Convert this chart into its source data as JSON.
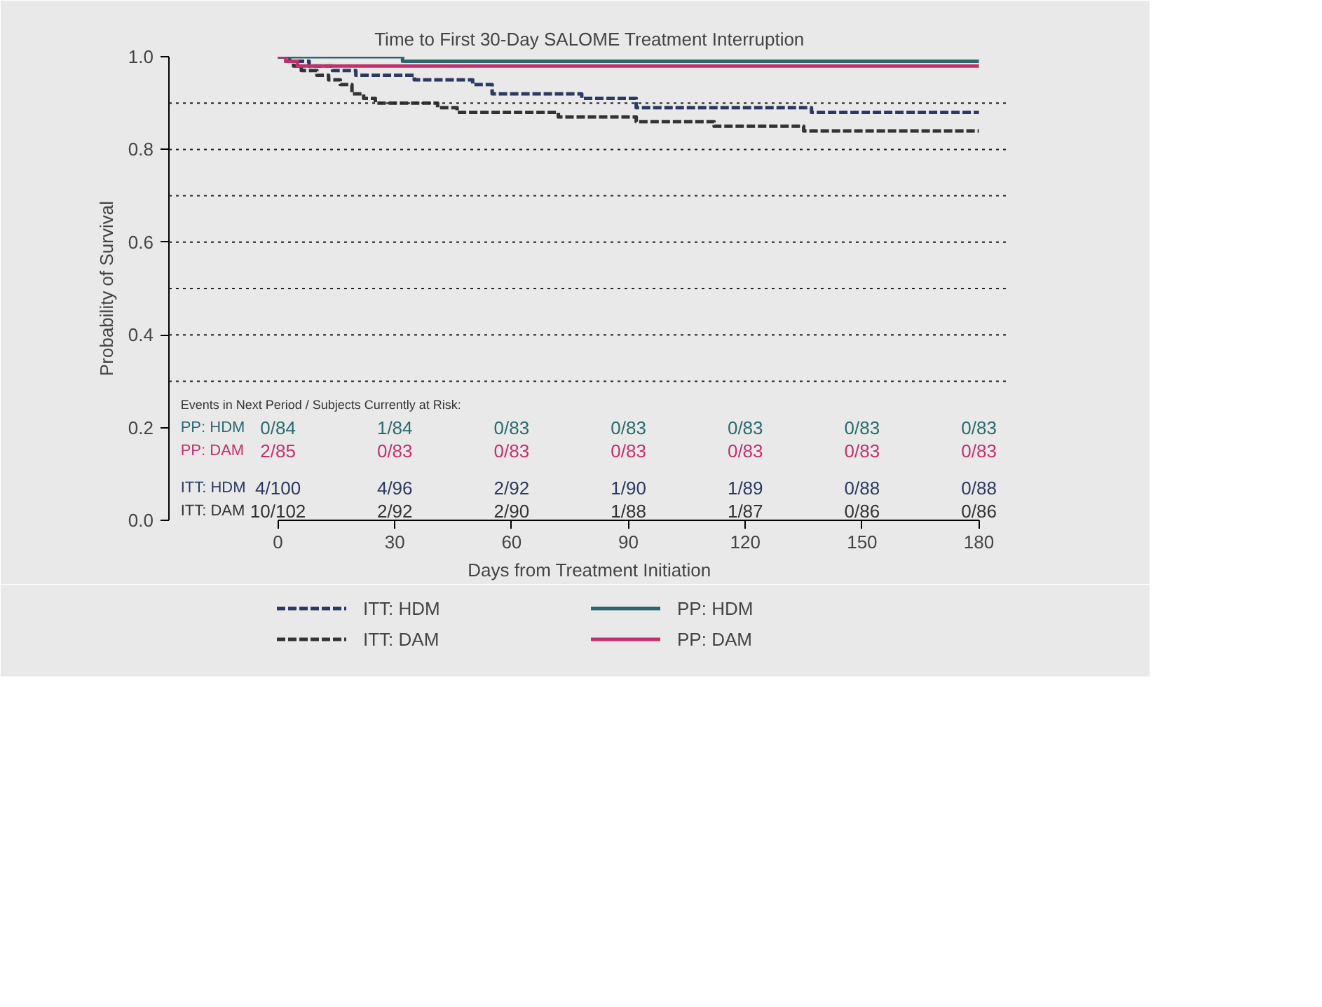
{
  "chart_data": {
    "type": "step",
    "title": "Time to First 30-Day SALOME Treatment Interruption",
    "xlabel": "Days from Treatment Initiation",
    "ylabel": "Probability of Survival",
    "xlim": [
      -28,
      188
    ],
    "xticks": [
      0,
      30,
      60,
      90,
      120,
      150,
      180
    ],
    "ylim": [
      0,
      1.0
    ],
    "yticks": [
      {
        "value": 0,
        "label": "0.0"
      },
      0.2,
      0.4,
      0.6,
      0.8,
      {
        "value": 1.0,
        "label": "1.0"
      }
    ],
    "legend": "bottom",
    "marker": "none",
    "ref_lines": [
      {
        "axis": "y",
        "value": 0.3,
        "color": "#222222",
        "line_style": "dotted"
      },
      {
        "axis": "y",
        "value": 0.4,
        "color": "#222222",
        "line_style": "dotted"
      },
      {
        "axis": "y",
        "value": 0.5,
        "color": "#222222",
        "line_style": "dotted"
      },
      {
        "axis": "y",
        "value": 0.6,
        "color": "#222222",
        "line_style": "dotted"
      },
      {
        "axis": "y",
        "value": 0.7,
        "color": "#222222",
        "line_style": "dotted"
      },
      {
        "axis": "y",
        "value": 0.8,
        "color": "#222222",
        "line_style": "dotted"
      },
      {
        "axis": "y",
        "value": 0.9,
        "color": "#222222",
        "line_style": "dotted"
      }
    ],
    "series": [
      {
        "name": "ITT: HDM",
        "color": "#2b3a5e",
        "line_style": "dashed",
        "x": [
          0,
          3,
          8,
          14,
          20,
          35,
          50,
          55,
          78,
          92,
          137,
          180
        ],
        "values": [
          1.0,
          0.99,
          0.98,
          0.97,
          0.96,
          0.95,
          0.94,
          0.92,
          0.91,
          0.89,
          0.88,
          0.88
        ]
      },
      {
        "name": "ITT: DAM",
        "color": "#333333",
        "line_style": "dashed",
        "x": [
          0,
          2,
          4,
          6,
          10,
          13,
          16,
          19,
          22,
          25,
          41,
          46,
          72,
          92,
          112,
          135,
          180
        ],
        "values": [
          1.0,
          0.99,
          0.98,
          0.97,
          0.96,
          0.95,
          0.94,
          0.92,
          0.91,
          0.9,
          0.89,
          0.88,
          0.87,
          0.86,
          0.85,
          0.84,
          0.84
        ]
      },
      {
        "name": "PP: HDM",
        "color": "#2a6a6c",
        "line_style": "solid",
        "x": [
          0,
          32,
          180
        ],
        "values": [
          1.0,
          0.99,
          0.99
        ]
      },
      {
        "name": "PP: DAM",
        "color": "#c2306c",
        "line_style": "solid",
        "x": [
          0,
          2,
          5,
          180
        ],
        "values": [
          1.0,
          0.99,
          0.98,
          0.98
        ]
      }
    ],
    "annotations": [
      "Events in Next Period / Subjects Currently at Risk:",
      "PP: HDM",
      "0/84",
      "1/84",
      "0/83",
      "0/83",
      "0/83",
      "0/83",
      "0/83",
      "PP: DAM",
      "2/85",
      "0/83",
      "0/83",
      "0/83",
      "0/83",
      "0/83",
      "0/83",
      "ITT: HDM",
      "4/100",
      "4/96",
      "2/92",
      "1/90",
      "1/89",
      "0/88",
      "0/88",
      "ITT: DAM",
      "10/102",
      "2/92",
      "2/90",
      "1/88",
      "1/87",
      "0/86",
      "0/86"
    ]
  }
}
